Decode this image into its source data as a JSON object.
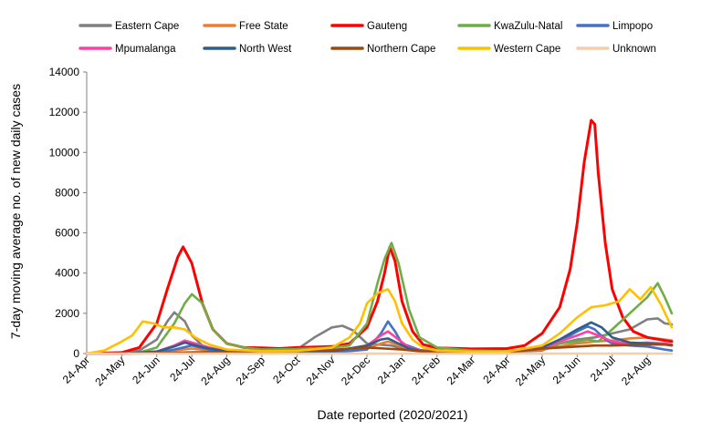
{
  "chart_data": {
    "type": "line",
    "title": "",
    "xlabel": "Date reported (2020/2021)",
    "ylabel": "7-day moving average no. of new daily cases",
    "ylim": [
      0,
      14000
    ],
    "yticks": [
      0,
      2000,
      4000,
      6000,
      8000,
      10000,
      12000,
      14000
    ],
    "x_tick_labels": [
      "24-Apr",
      "24-May",
      "24-Jun",
      "24-Jul",
      "24-Aug",
      "24-Sep",
      "24-Oct",
      "24-Nov",
      "24-Dec",
      "24-Jan",
      "24-Feb",
      "24-Mar",
      "24-Apr",
      "24-May",
      "24-Jun",
      "24-Jul",
      "24-Aug"
    ],
    "x_unit": "month index (0 = 24-Apr-2020)",
    "xlim": [
      0,
      16.7
    ],
    "grid": false,
    "legend_position": "top",
    "series": [
      {
        "name": "Eastern Cape",
        "color": "#808080",
        "points": [
          [
            0,
            0
          ],
          [
            1,
            0
          ],
          [
            1.5,
            150
          ],
          [
            2,
            700
          ],
          [
            2.3,
            1600
          ],
          [
            2.5,
            2050
          ],
          [
            2.8,
            1600
          ],
          [
            3,
            900
          ],
          [
            3.3,
            400
          ],
          [
            3.6,
            180
          ],
          [
            4,
            120
          ],
          [
            5,
            120
          ],
          [
            6,
            200
          ],
          [
            6.5,
            800
          ],
          [
            7,
            1300
          ],
          [
            7.3,
            1380
          ],
          [
            7.6,
            1150
          ],
          [
            8,
            500
          ],
          [
            8.3,
            450
          ],
          [
            8.7,
            400
          ],
          [
            9,
            250
          ],
          [
            9.5,
            150
          ],
          [
            10,
            100
          ],
          [
            11,
            80
          ],
          [
            12,
            80
          ],
          [
            13,
            150
          ],
          [
            13.5,
            500
          ],
          [
            14,
            700
          ],
          [
            14.5,
            800
          ],
          [
            15,
            1000
          ],
          [
            15.5,
            1200
          ],
          [
            16,
            1700
          ],
          [
            16.3,
            1750
          ],
          [
            16.5,
            1500
          ],
          [
            16.7,
            1450
          ]
        ]
      },
      {
        "name": "Free State",
        "color": "#ED7D31",
        "points": [
          [
            0,
            0
          ],
          [
            1,
            0
          ],
          [
            2,
            50
          ],
          [
            2.5,
            150
          ],
          [
            3,
            250
          ],
          [
            3.5,
            150
          ],
          [
            4,
            80
          ],
          [
            5,
            40
          ],
          [
            6,
            50
          ],
          [
            7,
            80
          ],
          [
            8,
            250
          ],
          [
            8.4,
            500
          ],
          [
            8.6,
            600
          ],
          [
            9,
            350
          ],
          [
            9.5,
            150
          ],
          [
            10,
            80
          ],
          [
            11,
            60
          ],
          [
            12,
            80
          ],
          [
            13,
            200
          ],
          [
            13.5,
            350
          ],
          [
            14,
            500
          ],
          [
            14.5,
            600
          ],
          [
            15,
            650
          ],
          [
            15.5,
            750
          ],
          [
            16,
            800
          ],
          [
            16.5,
            700
          ],
          [
            16.7,
            650
          ]
        ]
      },
      {
        "name": "Gauteng",
        "color": "#FF0000",
        "points": [
          [
            0,
            0
          ],
          [
            1,
            50
          ],
          [
            1.5,
            300
          ],
          [
            2,
            1500
          ],
          [
            2.3,
            3200
          ],
          [
            2.6,
            4800
          ],
          [
            2.75,
            5300
          ],
          [
            3,
            4500
          ],
          [
            3.3,
            2500
          ],
          [
            3.6,
            1200
          ],
          [
            4,
            500
          ],
          [
            4.5,
            300
          ],
          [
            5,
            280
          ],
          [
            5.5,
            250
          ],
          [
            6,
            300
          ],
          [
            7,
            350
          ],
          [
            7.5,
            500
          ],
          [
            8,
            1300
          ],
          [
            8.3,
            2600
          ],
          [
            8.5,
            4000
          ],
          [
            8.65,
            5300
          ],
          [
            8.8,
            4600
          ],
          [
            9,
            2600
          ],
          [
            9.3,
            1100
          ],
          [
            9.6,
            450
          ],
          [
            10,
            280
          ],
          [
            11,
            230
          ],
          [
            12,
            250
          ],
          [
            12.5,
            400
          ],
          [
            13,
            1000
          ],
          [
            13.5,
            2300
          ],
          [
            13.8,
            4200
          ],
          [
            14,
            6500
          ],
          [
            14.2,
            9500
          ],
          [
            14.4,
            11600
          ],
          [
            14.5,
            11400
          ],
          [
            14.6,
            9000
          ],
          [
            14.8,
            5500
          ],
          [
            15,
            3200
          ],
          [
            15.3,
            1800
          ],
          [
            15.6,
            1100
          ],
          [
            16,
            800
          ],
          [
            16.5,
            650
          ],
          [
            16.7,
            600
          ]
        ]
      },
      {
        "name": "KwaZulu-Natal",
        "color": "#70AD47",
        "points": [
          [
            0,
            0
          ],
          [
            1,
            0
          ],
          [
            1.5,
            50
          ],
          [
            2,
            300
          ],
          [
            2.5,
            1500
          ],
          [
            2.8,
            2500
          ],
          [
            3,
            2950
          ],
          [
            3.3,
            2500
          ],
          [
            3.6,
            1200
          ],
          [
            4,
            500
          ],
          [
            4.5,
            300
          ],
          [
            5,
            200
          ],
          [
            6,
            220
          ],
          [
            7,
            300
          ],
          [
            7.5,
            400
          ],
          [
            8,
            1500
          ],
          [
            8.3,
            3500
          ],
          [
            8.5,
            4700
          ],
          [
            8.7,
            5500
          ],
          [
            8.9,
            4500
          ],
          [
            9.2,
            2200
          ],
          [
            9.5,
            800
          ],
          [
            10,
            300
          ],
          [
            11,
            150
          ],
          [
            12,
            120
          ],
          [
            13,
            300
          ],
          [
            13.5,
            500
          ],
          [
            14,
            600
          ],
          [
            14.3,
            700
          ],
          [
            14.6,
            600
          ],
          [
            15,
            1200
          ],
          [
            15.5,
            2000
          ],
          [
            16,
            2800
          ],
          [
            16.3,
            3500
          ],
          [
            16.5,
            2800
          ],
          [
            16.7,
            2000
          ]
        ]
      },
      {
        "name": "Limpopo",
        "color": "#4472C4",
        "points": [
          [
            0,
            0
          ],
          [
            1,
            0
          ],
          [
            2,
            50
          ],
          [
            2.5,
            200
          ],
          [
            3,
            400
          ],
          [
            3.5,
            200
          ],
          [
            4,
            80
          ],
          [
            5,
            30
          ],
          [
            6,
            30
          ],
          [
            7,
            50
          ],
          [
            8,
            200
          ],
          [
            8.4,
            1000
          ],
          [
            8.6,
            1600
          ],
          [
            8.8,
            1100
          ],
          [
            9,
            500
          ],
          [
            9.5,
            180
          ],
          [
            10,
            80
          ],
          [
            11,
            50
          ],
          [
            12,
            60
          ],
          [
            13,
            300
          ],
          [
            13.5,
            600
          ],
          [
            14,
            1100
          ],
          [
            14.3,
            1350
          ],
          [
            14.5,
            1200
          ],
          [
            14.8,
            700
          ],
          [
            15,
            500
          ],
          [
            15.5,
            400
          ],
          [
            16,
            350
          ],
          [
            16.5,
            200
          ],
          [
            16.7,
            150
          ]
        ]
      },
      {
        "name": "Mpumalanga",
        "color": "#FF40A0",
        "points": [
          [
            0,
            0
          ],
          [
            1,
            0
          ],
          [
            2,
            100
          ],
          [
            2.5,
            400
          ],
          [
            2.8,
            650
          ],
          [
            3,
            550
          ],
          [
            3.5,
            300
          ],
          [
            4,
            120
          ],
          [
            5,
            60
          ],
          [
            6,
            60
          ],
          [
            7,
            100
          ],
          [
            8,
            400
          ],
          [
            8.4,
            900
          ],
          [
            8.6,
            1100
          ],
          [
            8.9,
            700
          ],
          [
            9.2,
            300
          ],
          [
            9.6,
            120
          ],
          [
            10,
            80
          ],
          [
            11,
            50
          ],
          [
            12,
            60
          ],
          [
            13,
            250
          ],
          [
            13.5,
            600
          ],
          [
            14,
            900
          ],
          [
            14.3,
            1100
          ],
          [
            14.6,
            900
          ],
          [
            15,
            600
          ],
          [
            15.5,
            500
          ],
          [
            16,
            550
          ],
          [
            16.5,
            500
          ],
          [
            16.7,
            450
          ]
        ]
      },
      {
        "name": "North West",
        "color": "#2E5F8A",
        "points": [
          [
            0,
            0
          ],
          [
            1,
            0
          ],
          [
            2,
            100
          ],
          [
            2.5,
            350
          ],
          [
            2.8,
            550
          ],
          [
            3,
            450
          ],
          [
            3.5,
            250
          ],
          [
            4,
            100
          ],
          [
            5,
            60
          ],
          [
            6,
            60
          ],
          [
            7,
            100
          ],
          [
            8,
            400
          ],
          [
            8.4,
            700
          ],
          [
            8.6,
            750
          ],
          [
            8.9,
            500
          ],
          [
            9.2,
            250
          ],
          [
            9.6,
            100
          ],
          [
            10,
            60
          ],
          [
            11,
            50
          ],
          [
            12,
            60
          ],
          [
            13,
            300
          ],
          [
            13.5,
            700
          ],
          [
            14,
            1200
          ],
          [
            14.4,
            1550
          ],
          [
            14.7,
            1300
          ],
          [
            15,
            800
          ],
          [
            15.5,
            550
          ],
          [
            16,
            500
          ],
          [
            16.5,
            450
          ],
          [
            16.7,
            400
          ]
        ]
      },
      {
        "name": "Northern Cape",
        "color": "#9E480E",
        "points": [
          [
            0,
            0
          ],
          [
            1,
            0
          ],
          [
            2,
            20
          ],
          [
            3,
            60
          ],
          [
            4,
            80
          ],
          [
            5,
            100
          ],
          [
            6,
            120
          ],
          [
            7,
            180
          ],
          [
            7.5,
            250
          ],
          [
            8,
            300
          ],
          [
            8.5,
            250
          ],
          [
            9,
            200
          ],
          [
            9.5,
            120
          ],
          [
            10,
            80
          ],
          [
            11,
            60
          ],
          [
            12,
            80
          ],
          [
            12.5,
            150
          ],
          [
            13,
            250
          ],
          [
            13.5,
            300
          ],
          [
            14,
            350
          ],
          [
            14.5,
            400
          ],
          [
            15,
            400
          ],
          [
            15.5,
            420
          ],
          [
            16,
            450
          ],
          [
            16.5,
            450
          ],
          [
            16.7,
            420
          ]
        ]
      },
      {
        "name": "Western Cape",
        "color": "#FFC000",
        "points": [
          [
            0,
            0
          ],
          [
            0.5,
            150
          ],
          [
            1,
            600
          ],
          [
            1.3,
            900
          ],
          [
            1.6,
            1600
          ],
          [
            1.9,
            1500
          ],
          [
            2.2,
            1300
          ],
          [
            2.5,
            1300
          ],
          [
            2.8,
            1200
          ],
          [
            3.1,
            800
          ],
          [
            3.5,
            450
          ],
          [
            4,
            200
          ],
          [
            5,
            120
          ],
          [
            6,
            130
          ],
          [
            7,
            300
          ],
          [
            7.5,
            800
          ],
          [
            7.8,
            1500
          ],
          [
            8,
            2500
          ],
          [
            8.3,
            3000
          ],
          [
            8.6,
            3200
          ],
          [
            8.8,
            2600
          ],
          [
            9,
            1500
          ],
          [
            9.3,
            700
          ],
          [
            9.6,
            300
          ],
          [
            10,
            150
          ],
          [
            11,
            100
          ],
          [
            12,
            100
          ],
          [
            13,
            400
          ],
          [
            13.5,
            1000
          ],
          [
            14,
            1800
          ],
          [
            14.4,
            2300
          ],
          [
            14.8,
            2400
          ],
          [
            15.2,
            2600
          ],
          [
            15.5,
            3200
          ],
          [
            15.8,
            2700
          ],
          [
            16.1,
            3300
          ],
          [
            16.4,
            2400
          ],
          [
            16.7,
            1300
          ]
        ]
      },
      {
        "name": "Unknown",
        "color": "#F8CBAD",
        "points": [
          [
            0,
            0
          ],
          [
            4,
            0
          ],
          [
            8,
            0
          ],
          [
            12,
            0
          ],
          [
            16.7,
            0
          ]
        ]
      }
    ]
  }
}
